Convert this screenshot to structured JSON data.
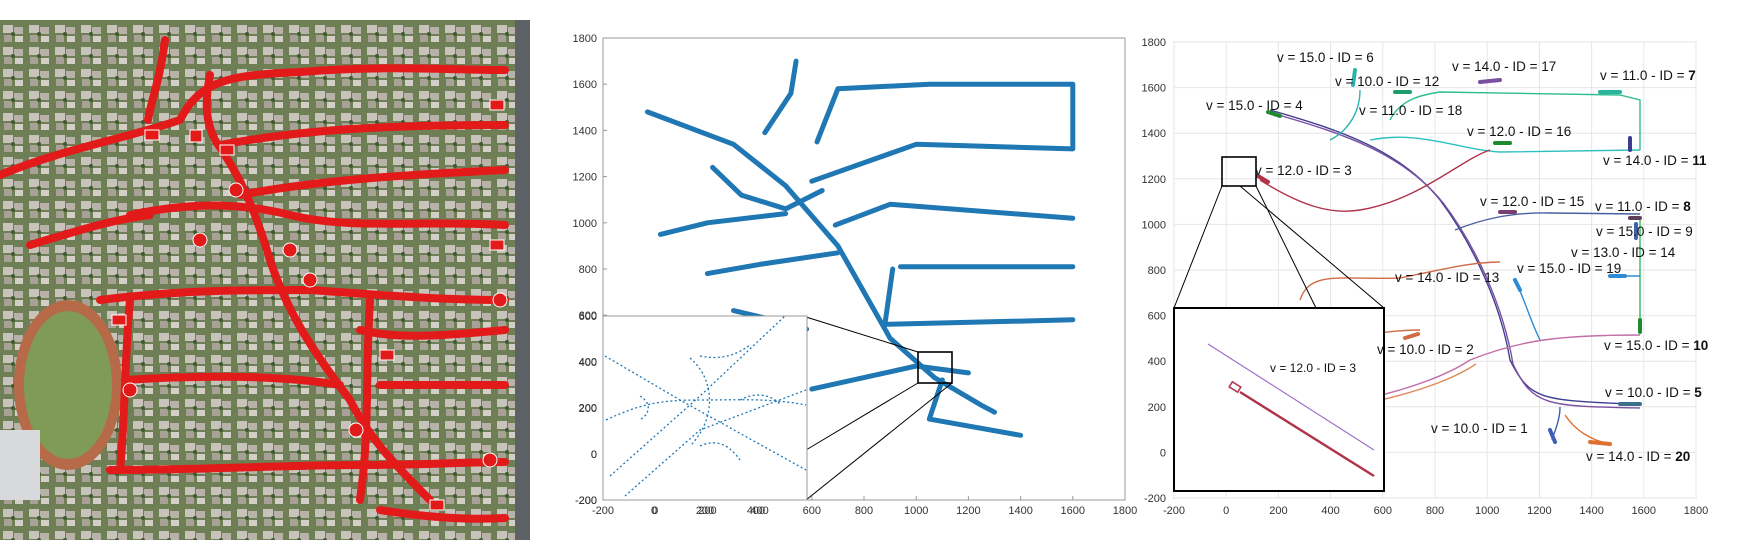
{
  "panels": {
    "aerial": {
      "description_free": true,
      "colors": {
        "road": "#e21a1a",
        "block": "#8a8f88",
        "vegetation": "#5f7a45",
        "track": "#b75a3c",
        "field": "#7e9a58"
      }
    },
    "road_map": {
      "xlim": [
        -200,
        1800
      ],
      "ylim": [
        -200,
        1800
      ],
      "xticks": [
        "-200",
        "0",
        "200",
        "400",
        "600",
        "800",
        "1000",
        "1200",
        "1400",
        "1600",
        "1800"
      ],
      "yticks": [
        "-200",
        "0",
        "200",
        "400",
        "600",
        "800",
        "1000",
        "1200",
        "1400",
        "1600",
        "1800"
      ],
      "color": "#1f77b4",
      "inset": {
        "xlim": [
          -200,
          600
        ],
        "ylim": [
          -200,
          600
        ],
        "xticks": [
          "-200",
          "0",
          "200",
          "400",
          "600"
        ],
        "yticks": [
          "-200",
          "0",
          "200",
          "400",
          "600"
        ]
      }
    },
    "trajectories": {
      "xlim": [
        -200,
        1800
      ],
      "ylim": [
        -200,
        1800
      ],
      "xticks": [
        "-200",
        "0",
        "200",
        "400",
        "600",
        "800",
        "1000",
        "1200",
        "1400",
        "1600",
        "1800"
      ],
      "yticks": [
        "-200",
        "0",
        "200",
        "400",
        "600",
        "800",
        "1000",
        "1200",
        "1400",
        "1600",
        "1800"
      ],
      "labels": [
        {
          "v": "v = 15.0 - ID = ",
          "id": "6"
        },
        {
          "v": "v = 10.0 - ID = ",
          "id": "12"
        },
        {
          "v": "v = 14.0 - ID = ",
          "id": "17"
        },
        {
          "v": "v = 11.0 - ID = ",
          "id": "7"
        },
        {
          "v": "v = 15.0 - ID = ",
          "id": "4"
        },
        {
          "v": "v = 11.0 - ID = ",
          "id": "18"
        },
        {
          "v": "v = 12.0 - ID = ",
          "id": "16"
        },
        {
          "v": "v = 14.0 - ID = ",
          "id": "11"
        },
        {
          "v": "v = 12.0 - ID = ",
          "id": "3"
        },
        {
          "v": "v = 12.0 - ID = ",
          "id": "15"
        },
        {
          "v": "v = 11.0 - ID = ",
          "id": "8"
        },
        {
          "v": "v = 15.0 - ID = ",
          "id": "9"
        },
        {
          "v": "v = 13.0 - ID = ",
          "id": "14"
        },
        {
          "v": "v = 15.0 - ID = ",
          "id": "19"
        },
        {
          "v": "v = 14.0 - ID = ",
          "id": "13"
        },
        {
          "v": "v = 10.0 - ID = ",
          "id": "2"
        },
        {
          "v": "v = 15.0 - ID = ",
          "id": "10"
        },
        {
          "v": "v = 10.0 - ID = ",
          "id": "5"
        },
        {
          "v": "v = 10.0 - ID = ",
          "id": "1"
        },
        {
          "v": "v = 14.0 - ID = ",
          "id": "20"
        }
      ],
      "inset": {
        "label": "v = 12.0 - ID = 3",
        "colors": {
          "path": "#b0334a",
          "reference": "#a070c8"
        }
      }
    }
  },
  "chart_data": [
    {
      "type": "line",
      "description": "road network centerlines",
      "xlim": [
        -200,
        1800
      ],
      "ylim": [
        -200,
        1800
      ],
      "series": [
        {
          "values": [
            [
              -30,
              1480
            ],
            [
              300,
              1340
            ],
            [
              500,
              1160
            ],
            [
              700,
              900
            ],
            [
              800,
              700
            ],
            [
              900,
              500
            ],
            [
              1070,
              330
            ],
            [
              1250,
              210
            ],
            [
              1300,
              180
            ]
          ]
        },
        {
          "values": [
            [
              540,
              1700
            ],
            [
              520,
              1560
            ],
            [
              420,
              1390
            ]
          ]
        },
        {
          "values": [
            [
              620,
              1350
            ],
            [
              700,
              1580
            ],
            [
              1050,
              1600
            ],
            [
              1600,
              1600
            ],
            [
              1600,
              1320
            ],
            [
              1000,
              1340
            ],
            [
              600,
              1180
            ]
          ]
        },
        {
          "values": [
            [
              220,
              1240
            ],
            [
              330,
              1120
            ],
            [
              500,
              1060
            ],
            [
              640,
              1140
            ]
          ]
        },
        {
          "values": [
            [
              20,
              950
            ],
            [
              200,
              1000
            ],
            [
              500,
              1040
            ]
          ]
        },
        {
          "values": [
            [
              200,
              780
            ],
            [
              400,
              820
            ],
            [
              700,
              870
            ]
          ]
        },
        {
          "values": [
            [
              300,
              620
            ],
            [
              450,
              580
            ],
            [
              580,
              540
            ]
          ]
        },
        {
          "values": [
            [
              690,
              990
            ],
            [
              900,
              1080
            ],
            [
              1600,
              1020
            ]
          ]
        },
        {
          "values": [
            [
              940,
              810
            ],
            [
              1600,
              810
            ]
          ]
        },
        {
          "values": [
            [
              910,
              800
            ],
            [
              880,
              560
            ],
            [
              1600,
              580
            ]
          ]
        },
        {
          "values": [
            [
              600,
              280
            ],
            [
              1000,
              380
            ],
            [
              1200,
              350
            ]
          ]
        },
        {
          "values": [
            [
              1100,
              320
            ],
            [
              1050,
              150
            ],
            [
              1400,
              80
            ]
          ]
        }
      ]
    },
    {
      "type": "line",
      "description": "vehicle trajectories with velocity and ID labels",
      "xlim": [
        -200,
        1800
      ],
      "ylim": [
        -200,
        1800
      ],
      "vehicles": [
        {
          "id": 1,
          "v": 10.0
        },
        {
          "id": 2,
          "v": 10.0
        },
        {
          "id": 3,
          "v": 12.0
        },
        {
          "id": 4,
          "v": 15.0
        },
        {
          "id": 5,
          "v": 10.0
        },
        {
          "id": 6,
          "v": 15.0
        },
        {
          "id": 7,
          "v": 11.0
        },
        {
          "id": 8,
          "v": 11.0
        },
        {
          "id": 9,
          "v": 15.0
        },
        {
          "id": 10,
          "v": 15.0
        },
        {
          "id": 11,
          "v": 14.0
        },
        {
          "id": 12,
          "v": 10.0
        },
        {
          "id": 13,
          "v": 14.0
        },
        {
          "id": 14,
          "v": 13.0
        },
        {
          "id": 15,
          "v": 12.0
        },
        {
          "id": 16,
          "v": 12.0
        },
        {
          "id": 17,
          "v": 14.0
        },
        {
          "id": 18,
          "v": 11.0
        },
        {
          "id": 19,
          "v": 15.0
        },
        {
          "id": 20,
          "v": 14.0
        }
      ]
    }
  ]
}
